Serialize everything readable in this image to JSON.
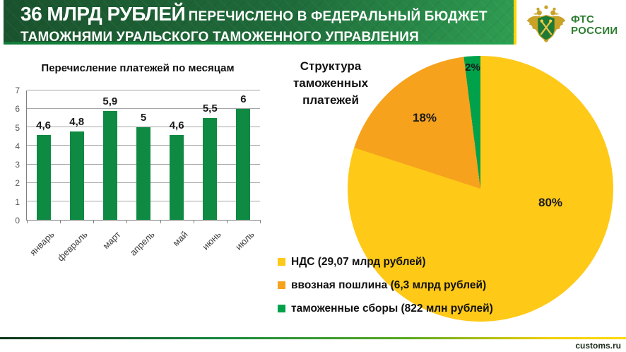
{
  "colors": {
    "banner_green_dark": "#1a522d",
    "banner_green_light": "#2f9e52",
    "banner_strip_green": "#25a24f",
    "accent_yellow": "#ffd200",
    "bar_green": "#0e8a42",
    "pie_yellow": "#ffc918",
    "pie_orange": "#f6a21d",
    "pie_green": "#00a14b",
    "logo_green": "#2e7d32",
    "logo_gold": "#c9a227",
    "footer_text": "#1c2b1c"
  },
  "header": {
    "amount": "36 МЛРД РУБЛЕЙ",
    "line1_rest": "ПЕРЕЧИСЛЕНО В ФЕДЕРАЛЬНЫЙ БЮДЖЕТ",
    "line2": "ТАМОЖНЯМИ УРАЛЬСКОГО ТАМОЖЕННОГО УПРАВЛЕНИЯ"
  },
  "logo": {
    "org_line1": "ФТС",
    "org_line2": "РОССИИ"
  },
  "footer": {
    "site": "customs.ru"
  },
  "chart_data": [
    {
      "type": "bar",
      "title": "Перечисление  платежей по месяцам",
      "categories": [
        "январь",
        "февраль",
        "март",
        "апрель",
        "май",
        "июнь",
        "июль"
      ],
      "values": [
        4.6,
        4.8,
        5.9,
        5,
        4.6,
        5.5,
        6
      ],
      "value_labels": [
        "4,6",
        "4,8",
        "5,9",
        "5",
        "4,6",
        "5,5",
        "6"
      ],
      "xlabel": "",
      "ylabel": "",
      "ylim": [
        0,
        7
      ],
      "ytick_step": 1,
      "grid": true,
      "bar_color": "#0e8a42",
      "legend_position": "none"
    },
    {
      "type": "pie",
      "title": "Структура таможенных платежей",
      "start_angle_deg": 0,
      "direction": "clockwise",
      "legend_position": "bottom-left",
      "slices": [
        {
          "label": "НДС (29,07 млрд рублей)",
          "pct": 80,
          "pct_label": "80%",
          "color": "#ffc918"
        },
        {
          "label": "ввозная пошлина (6,3 млрд рублей)",
          "pct": 18,
          "pct_label": "18%",
          "color": "#f6a21d"
        },
        {
          "label": "таможенные сборы (822 млн рублей)",
          "pct": 2,
          "pct_label": "2%",
          "color": "#00a14b"
        }
      ]
    }
  ]
}
